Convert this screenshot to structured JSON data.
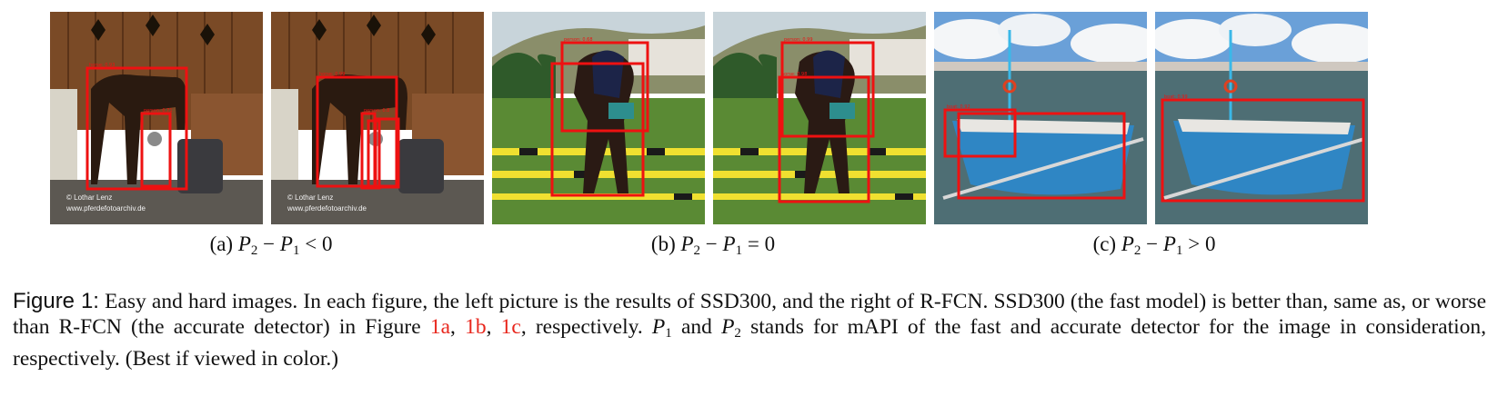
{
  "subfigures": [
    {
      "tag": "(a)",
      "relation": "<",
      "rhs": "0"
    },
    {
      "tag": "(b)",
      "relation": "=",
      "rhs": "0"
    },
    {
      "tag": "(c)",
      "relation": ">",
      "rhs": "0"
    }
  ],
  "photo_credit": {
    "line1": "© Lothar Lenz",
    "line2": "www.pferdefotoarchiv.de"
  },
  "caption": {
    "label": "Figure 1:",
    "text1": " Easy and hard images. In each figure, the left picture is the results of SSD300, and the right of R-FCN. SSD300 (the fast model) is better than, same as, or worse than R-FCN (the accurate detector) in Figure ",
    "ref_a": "1a",
    "sep1": ", ",
    "ref_b": "1b",
    "sep2": ", ",
    "ref_c": "1c",
    "text2": ", respectively. ",
    "text3": " and ",
    "text4": " stands for mAPI of the fast and accurate detector for the image in consideration, respectively. (Best if viewed in color.)"
  },
  "colors": {
    "box": "#ee1111",
    "ref": "#e8261c"
  }
}
